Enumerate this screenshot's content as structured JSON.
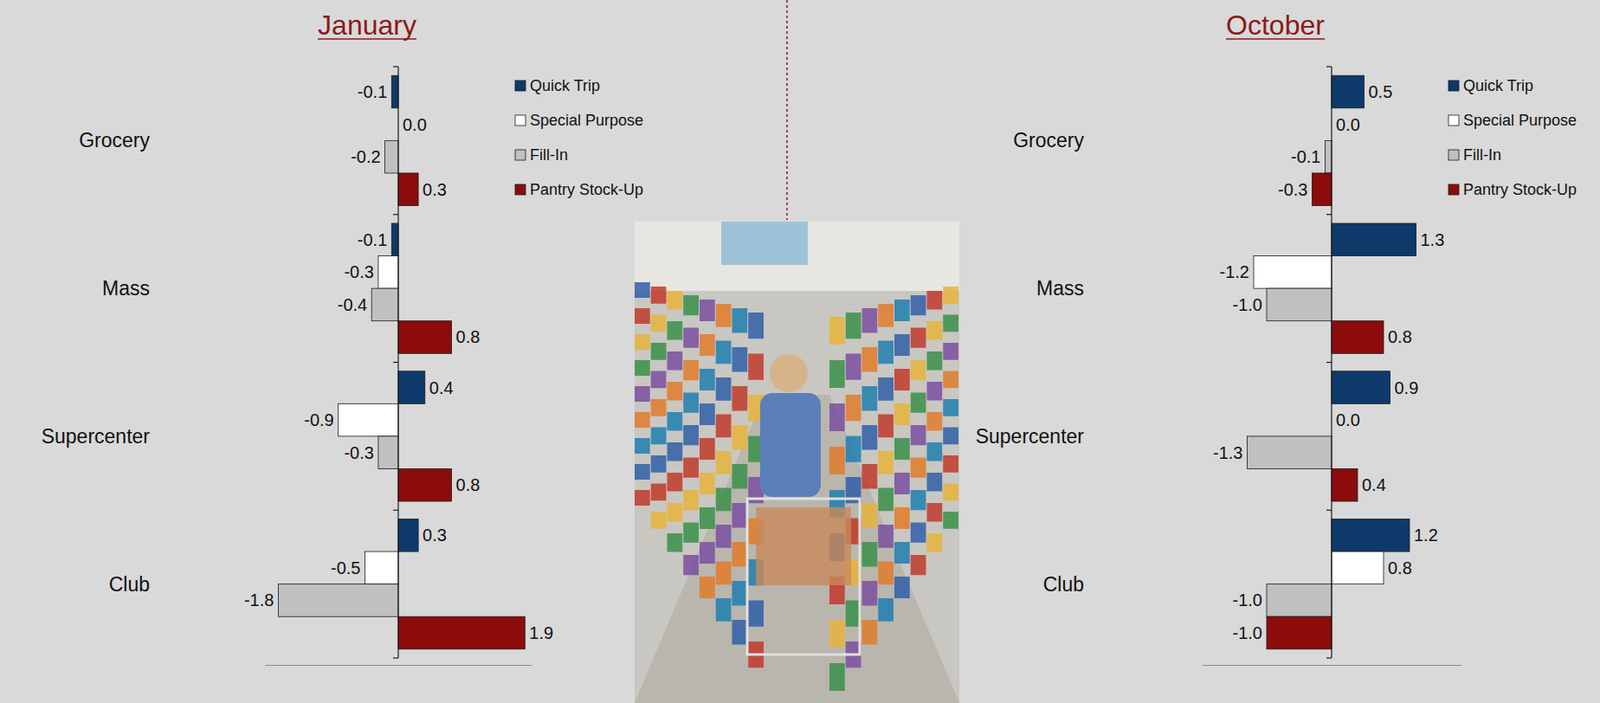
{
  "chart_data": [
    {
      "type": "bar",
      "title": "January",
      "orientation": "horizontal",
      "data_labels": true,
      "tick_labels": "y",
      "legend": "upper right",
      "categories": [
        "Grocery",
        "Mass",
        "Supercenter",
        "Club"
      ],
      "xlim": [
        -2,
        2
      ],
      "series": [
        {
          "name": "Quick Trip",
          "color": "#0d3a6b",
          "values": [
            -0.1,
            -0.1,
            0.4,
            0.3
          ],
          "value_labels": [
            "-0.1",
            "-0.1",
            "0.4",
            "0.3"
          ]
        },
        {
          "name": "Special Purpose",
          "color": "#ffffff",
          "values": [
            0.0,
            -0.3,
            -0.9,
            -0.5
          ],
          "value_labels": [
            "0.0",
            "-0.3",
            "-0.9",
            "-0.5"
          ]
        },
        {
          "name": "Fill-In",
          "color": "#c0c0c0",
          "values": [
            -0.2,
            -0.4,
            -0.3,
            -1.8
          ],
          "value_labels": [
            "-0.2",
            "-0.4",
            "-0.3",
            "-1.8"
          ]
        },
        {
          "name": "Pantry Stock-Up",
          "color": "#8c0c0c",
          "values": [
            0.3,
            0.8,
            0.8,
            1.9
          ],
          "value_labels": [
            "0.3",
            "0.8",
            "0.8",
            "1.9"
          ]
        }
      ]
    },
    {
      "type": "bar",
      "title": "October",
      "orientation": "horizontal",
      "data_labels": true,
      "tick_labels": "y",
      "legend": "upper right",
      "categories": [
        "Grocery",
        "Mass",
        "Supercenter",
        "Club"
      ],
      "xlim": [
        -2,
        2
      ],
      "series": [
        {
          "name": "Quick Trip",
          "color": "#0d3a6b",
          "values": [
            0.5,
            1.3,
            0.9,
            1.2
          ],
          "value_labels": [
            "0.5",
            "1.3",
            "0.9",
            "1.2"
          ]
        },
        {
          "name": "Special Purpose",
          "color": "#ffffff",
          "values": [
            0.0,
            -1.2,
            0.0,
            0.8
          ],
          "value_labels": [
            "0.0",
            "-1.2",
            "0.0",
            "0.8"
          ]
        },
        {
          "name": "Fill-In",
          "color": "#c0c0c0",
          "values": [
            -0.1,
            -1.0,
            -1.3,
            -1.0
          ],
          "value_labels": [
            "-0.1",
            "-1.0",
            "-1.3",
            "-1.0"
          ]
        },
        {
          "name": "Pantry Stock-Up",
          "color": "#8c0c0c",
          "values": [
            -0.3,
            0.8,
            0.4,
            -1.0
          ],
          "value_labels": [
            "-0.3",
            "0.8",
            "0.4",
            "-1.0"
          ]
        }
      ]
    }
  ]
}
